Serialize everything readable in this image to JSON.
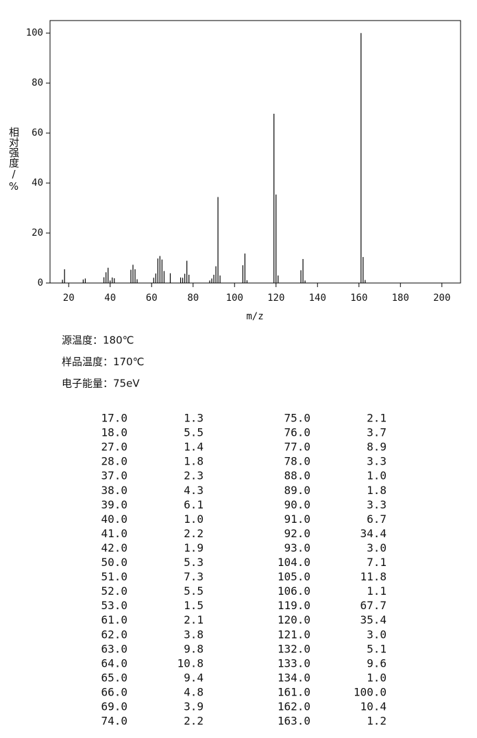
{
  "chart_data": {
    "type": "bar",
    "xlabel": "m/z",
    "ylabel": "相对强度/%",
    "color": "#000000",
    "x": [
      17,
      18,
      27,
      28,
      37,
      38,
      39,
      40,
      41,
      42,
      50,
      51,
      52,
      53,
      61,
      62,
      63,
      64,
      65,
      66,
      69,
      74,
      75,
      76,
      77,
      78,
      88,
      89,
      90,
      91,
      92,
      93,
      104,
      105,
      106,
      119,
      120,
      121,
      132,
      133,
      134,
      161,
      162,
      163
    ],
    "values": [
      1.3,
      5.5,
      1.4,
      1.8,
      2.3,
      4.3,
      6.1,
      1.0,
      2.2,
      1.9,
      5.3,
      7.3,
      5.5,
      1.5,
      2.1,
      3.8,
      9.8,
      10.8,
      9.4,
      4.8,
      3.9,
      2.2,
      2.1,
      3.7,
      8.9,
      3.3,
      1.0,
      1.8,
      3.3,
      6.7,
      34.4,
      3.0,
      7.1,
      11.8,
      1.1,
      67.7,
      35.4,
      3.0,
      5.1,
      9.6,
      1.0,
      100.0,
      10.4,
      1.2
    ],
    "xlim": [
      11,
      209
    ],
    "ylim": [
      0,
      105
    ],
    "xticks": [
      20,
      40,
      60,
      80,
      100,
      120,
      140,
      160,
      180,
      200
    ],
    "yticks": [
      0,
      20,
      40,
      60,
      80,
      100
    ]
  },
  "conditions": [
    "源温度：180℃",
    "样品温度：170℃",
    "电子能量：75eV"
  ],
  "table": {
    "rows": [
      [
        "17.0",
        "1.3",
        "75.0",
        "2.1"
      ],
      [
        "18.0",
        "5.5",
        "76.0",
        "3.7"
      ],
      [
        "27.0",
        "1.4",
        "77.0",
        "8.9"
      ],
      [
        "28.0",
        "1.8",
        "78.0",
        "3.3"
      ],
      [
        "37.0",
        "2.3",
        "88.0",
        "1.0"
      ],
      [
        "38.0",
        "4.3",
        "89.0",
        "1.8"
      ],
      [
        "39.0",
        "6.1",
        "90.0",
        "3.3"
      ],
      [
        "40.0",
        "1.0",
        "91.0",
        "6.7"
      ],
      [
        "41.0",
        "2.2",
        "92.0",
        "34.4"
      ],
      [
        "42.0",
        "1.9",
        "93.0",
        "3.0"
      ],
      [
        "50.0",
        "5.3",
        "104.0",
        "7.1"
      ],
      [
        "51.0",
        "7.3",
        "105.0",
        "11.8"
      ],
      [
        "52.0",
        "5.5",
        "106.0",
        "1.1"
      ],
      [
        "53.0",
        "1.5",
        "119.0",
        "67.7"
      ],
      [
        "61.0",
        "2.1",
        "120.0",
        "35.4"
      ],
      [
        "62.0",
        "3.8",
        "121.0",
        "3.0"
      ],
      [
        "63.0",
        "9.8",
        "132.0",
        "5.1"
      ],
      [
        "64.0",
        "10.8",
        "133.0",
        "9.6"
      ],
      [
        "65.0",
        "9.4",
        "134.0",
        "1.0"
      ],
      [
        "66.0",
        "4.8",
        "161.0",
        "100.0"
      ],
      [
        "69.0",
        "3.9",
        "162.0",
        "10.4"
      ],
      [
        "74.0",
        "2.2",
        "163.0",
        "1.2"
      ]
    ]
  }
}
